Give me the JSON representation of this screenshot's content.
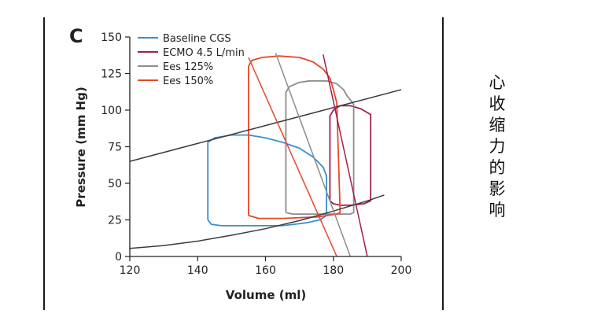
{
  "side_caption": [
    "心",
    "收",
    "缩",
    "力",
    "的",
    "影",
    "响"
  ],
  "chart_data": {
    "type": "line",
    "panel_label": "C",
    "title": "",
    "xlabel": "Volume (ml)",
    "ylabel": "Pressure (mm Hg)",
    "xlim": [
      120,
      200
    ],
    "ylim": [
      0,
      150
    ],
    "xticks": [
      120,
      140,
      160,
      180,
      200
    ],
    "yticks": [
      0,
      25,
      50,
      75,
      100,
      125,
      150
    ],
    "grid": false,
    "legend_position": "top-left",
    "series": [
      {
        "name": "Baseline CGS",
        "color": "#3a8fd0",
        "kind": "loop",
        "points": [
          [
            143,
            25
          ],
          [
            143,
            78
          ],
          [
            145,
            81
          ],
          [
            150,
            83
          ],
          [
            155,
            83
          ],
          [
            160,
            81
          ],
          [
            165,
            78
          ],
          [
            170,
            74
          ],
          [
            174,
            68
          ],
          [
            177,
            61
          ],
          [
            178,
            55
          ],
          [
            178,
            28
          ],
          [
            176,
            25
          ],
          [
            172,
            23
          ],
          [
            165,
            21
          ],
          [
            155,
            21
          ],
          [
            147,
            21
          ],
          [
            144,
            22
          ],
          [
            143,
            25
          ]
        ]
      },
      {
        "name": "ECMO 4.5 L/min",
        "color": "#a01e50",
        "kind": "loop",
        "points": [
          [
            179,
            38
          ],
          [
            179,
            96
          ],
          [
            180,
            100
          ],
          [
            182,
            103
          ],
          [
            185,
            103
          ],
          [
            188,
            101
          ],
          [
            191,
            97
          ],
          [
            191,
            38
          ],
          [
            189,
            36
          ],
          [
            185,
            35
          ],
          [
            182,
            35
          ],
          [
            180,
            36
          ],
          [
            179,
            38
          ]
        ]
      },
      {
        "name": "Ees 125%",
        "color": "#8c8c8c",
        "kind": "loop",
        "points": [
          [
            166,
            30
          ],
          [
            166,
            112
          ],
          [
            167,
            116
          ],
          [
            170,
            119
          ],
          [
            173,
            120
          ],
          [
            178,
            120
          ],
          [
            181,
            118
          ],
          [
            183,
            114
          ],
          [
            184,
            110
          ],
          [
            186,
            104
          ],
          [
            186,
            30
          ],
          [
            185,
            29
          ],
          [
            180,
            29
          ],
          [
            172,
            29
          ],
          [
            168,
            29
          ],
          [
            166,
            30
          ]
        ]
      },
      {
        "name": "Ees 150%",
        "color": "#e8462a",
        "kind": "loop",
        "points": [
          [
            155,
            28
          ],
          [
            155,
            130
          ],
          [
            156,
            134
          ],
          [
            159,
            136
          ],
          [
            164,
            137
          ],
          [
            170,
            136
          ],
          [
            174,
            133
          ],
          [
            177,
            128
          ],
          [
            179,
            122
          ],
          [
            180,
            114
          ],
          [
            181,
            105
          ],
          [
            182,
            30
          ],
          [
            181,
            29
          ],
          [
            175,
            27
          ],
          [
            165,
            26
          ],
          [
            158,
            26
          ],
          [
            155,
            28
          ]
        ]
      },
      {
        "name": "",
        "color": "#3b3b3b",
        "kind": "line",
        "points": [
          [
            120,
            65
          ],
          [
            200,
            114
          ]
        ]
      },
      {
        "name": "",
        "color": "#3b3b3b",
        "kind": "line",
        "points": [
          [
            120,
            5.5
          ],
          [
            130,
            7.5
          ],
          [
            140,
            10.5
          ],
          [
            150,
            14.5
          ],
          [
            160,
            19
          ],
          [
            170,
            24.5
          ],
          [
            180,
            31
          ],
          [
            190,
            38
          ],
          [
            195,
            42
          ]
        ]
      },
      {
        "name": "",
        "color": "#8c8c8c",
        "kind": "line",
        "points": [
          [
            163,
            139
          ],
          [
            185,
            0
          ]
        ]
      },
      {
        "name": "",
        "color": "#e8462a",
        "kind": "line",
        "points": [
          [
            155,
            136
          ],
          [
            181,
            0
          ]
        ]
      },
      {
        "name": "",
        "color": "#a01e50",
        "kind": "line",
        "points": [
          [
            177,
            138
          ],
          [
            190,
            0
          ]
        ]
      }
    ]
  }
}
